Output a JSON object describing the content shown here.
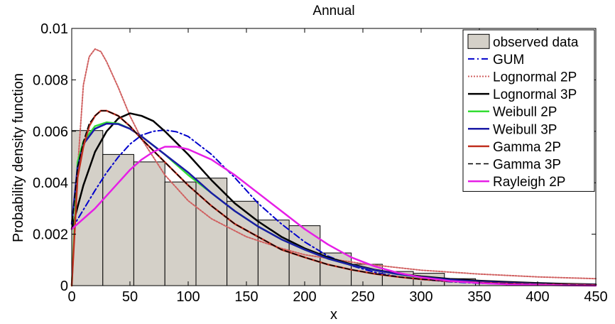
{
  "chart_data": {
    "type": "bar",
    "title": "Annual",
    "xlabel": "x",
    "ylabel": "Probability density function",
    "xlim": [
      0,
      450
    ],
    "ylim": [
      0,
      0.01
    ],
    "xticks": [
      "0",
      "50",
      "100",
      "150",
      "200",
      "250",
      "300",
      "350",
      "400",
      "450"
    ],
    "xtick_values": [
      0,
      50,
      100,
      150,
      200,
      250,
      300,
      350,
      400,
      450
    ],
    "yticks": [
      "0",
      "0.002",
      "0.004",
      "0.006",
      "0.008",
      "0.01"
    ],
    "ytick_values": [
      0,
      0.002,
      0.004,
      0.006,
      0.008,
      0.01
    ],
    "grid": false,
    "legend_position": "top-right",
    "histogram": {
      "name": "observed data",
      "color": "#d4d0c8",
      "bins": [
        {
          "x0": 0,
          "x1": 26.7,
          "value": 0.00603
        },
        {
          "x0": 26.7,
          "x1": 53.3,
          "value": 0.0051
        },
        {
          "x0": 53.3,
          "x1": 80,
          "value": 0.00481
        },
        {
          "x0": 80,
          "x1": 106.7,
          "value": 0.00403
        },
        {
          "x0": 106.7,
          "x1": 133.3,
          "value": 0.00418
        },
        {
          "x0": 133.3,
          "x1": 160,
          "value": 0.00328
        },
        {
          "x0": 160,
          "x1": 186.7,
          "value": 0.00255
        },
        {
          "x0": 186.7,
          "x1": 213.3,
          "value": 0.00233
        },
        {
          "x0": 213.3,
          "x1": 240,
          "value": 0.00127
        },
        {
          "x0": 240,
          "x1": 266.7,
          "value": 0.00083
        },
        {
          "x0": 266.7,
          "x1": 293.3,
          "value": 0.00055
        },
        {
          "x0": 293.3,
          "x1": 320,
          "value": 0.00048
        },
        {
          "x0": 320,
          "x1": 346.7,
          "value": 0.00027
        },
        {
          "x0": 346.7,
          "x1": 373.3,
          "value": 0.00015
        },
        {
          "x0": 373.3,
          "x1": 400,
          "value": 0.0001
        },
        {
          "x0": 400,
          "x1": 426.7,
          "value": 6e-05
        },
        {
          "x0": 426.7,
          "x1": 450,
          "value": 3e-05
        }
      ]
    },
    "series": [
      {
        "name": "GUM",
        "color": "#0000cc",
        "dash": "dashdot",
        "width": 2,
        "x": [
          0,
          10,
          20,
          30,
          40,
          50,
          60,
          70,
          80,
          90,
          100,
          120,
          140,
          160,
          180,
          200,
          220,
          240,
          260,
          280,
          300,
          325,
          350,
          375,
          400,
          425,
          450
        ],
        "y": [
          0.0022,
          0.00295,
          0.0037,
          0.0044,
          0.005,
          0.0055,
          0.00585,
          0.006,
          0.00605,
          0.00598,
          0.0058,
          0.0051,
          0.0042,
          0.0032,
          0.0024,
          0.0017,
          0.00115,
          0.00078,
          0.00052,
          0.00035,
          0.00024,
          0.00015,
          9e-05,
          6e-05,
          4e-05,
          2e-05,
          1e-05
        ]
      },
      {
        "name": "Lognormal 2P",
        "color": "#d06060",
        "dash": "dotted",
        "width": 2,
        "x": [
          0,
          5,
          10,
          15,
          20,
          25,
          30,
          40,
          50,
          60,
          80,
          100,
          120,
          150,
          180,
          200,
          250,
          300,
          350,
          400,
          450
        ],
        "y": [
          0,
          0.0045,
          0.0078,
          0.0089,
          0.0092,
          0.0091,
          0.0087,
          0.0077,
          0.0066,
          0.0057,
          0.0043,
          0.0033,
          0.0026,
          0.0019,
          0.00145,
          0.0012,
          0.00085,
          0.0006,
          0.00045,
          0.00034,
          0.00027
        ]
      },
      {
        "name": "Lognormal 3P",
        "color": "#000000",
        "dash": "solid",
        "width": 2.5,
        "x": [
          0,
          10,
          20,
          30,
          40,
          50,
          60,
          70,
          80,
          100,
          120,
          140,
          160,
          180,
          200,
          220,
          240,
          260,
          280,
          300,
          325,
          350,
          375,
          400,
          425,
          450
        ],
        "y": [
          0.0022,
          0.0039,
          0.0052,
          0.006,
          0.0065,
          0.0067,
          0.0066,
          0.0064,
          0.006,
          0.0051,
          0.0041,
          0.0032,
          0.0025,
          0.0019,
          0.00145,
          0.0011,
          0.00083,
          0.00062,
          0.00047,
          0.00036,
          0.00026,
          0.00019,
          0.00014,
          0.0001,
          7e-05,
          5e-05
        ]
      },
      {
        "name": "Weibull 2P",
        "color": "#33dd33",
        "dash": "solid",
        "width": 2.5,
        "x": [
          0,
          5,
          10,
          20,
          30,
          40,
          50,
          60,
          80,
          100,
          120,
          140,
          160,
          180,
          200,
          220,
          240,
          260,
          280,
          300,
          325,
          350,
          375,
          400,
          425,
          450
        ],
        "y": [
          0,
          0.0048,
          0.0056,
          0.0062,
          0.00635,
          0.0063,
          0.0061,
          0.0058,
          0.0051,
          0.0043,
          0.0036,
          0.0029,
          0.0023,
          0.0018,
          0.0014,
          0.00105,
          0.0008,
          0.0006,
          0.00044,
          0.00032,
          0.00022,
          0.00015,
          0.0001,
          7e-05,
          4e-05,
          3e-05
        ]
      },
      {
        "name": "Weibull 3P",
        "color": "#1a1aa6",
        "dash": "solid",
        "width": 2.5,
        "x": [
          0,
          5,
          10,
          20,
          30,
          40,
          50,
          60,
          80,
          100,
          120,
          140,
          160,
          180,
          200,
          220,
          240,
          260,
          280,
          300,
          325,
          350,
          375,
          400,
          425,
          450
        ],
        "y": [
          0.0024,
          0.0046,
          0.0055,
          0.0061,
          0.0063,
          0.00628,
          0.0061,
          0.0058,
          0.0051,
          0.0044,
          0.0036,
          0.0029,
          0.0023,
          0.0018,
          0.0014,
          0.00105,
          0.0008,
          0.0006,
          0.00045,
          0.00033,
          0.00023,
          0.00016,
          0.00011,
          7e-05,
          5e-05,
          3e-05
        ]
      },
      {
        "name": "Gamma 2P",
        "color": "#c03020",
        "dash": "solid",
        "width": 2.5,
        "x": [
          0,
          5,
          10,
          15,
          20,
          25,
          30,
          40,
          50,
          60,
          80,
          100,
          120,
          140,
          160,
          180,
          200,
          220,
          240,
          260,
          280,
          300,
          325,
          350,
          375,
          400,
          425,
          450
        ],
        "y": [
          0,
          0.0042,
          0.0054,
          0.0062,
          0.0066,
          0.0068,
          0.0068,
          0.0066,
          0.0062,
          0.0057,
          0.0048,
          0.0039,
          0.0031,
          0.0024,
          0.0019,
          0.0014,
          0.0011,
          0.00082,
          0.00062,
          0.00046,
          0.00034,
          0.00025,
          0.00017,
          0.00012,
          8e-05,
          5e-05,
          4e-05,
          2e-05
        ]
      },
      {
        "name": "Gamma 3P",
        "color": "#000000",
        "dash": "dashed",
        "width": 1.5,
        "x": [
          0,
          5,
          10,
          15,
          20,
          25,
          30,
          40,
          50,
          60,
          80,
          100,
          120,
          140,
          160,
          180,
          200,
          220,
          240,
          260,
          280,
          300,
          325,
          350,
          375,
          400,
          425,
          450
        ],
        "y": [
          0.0022,
          0.0046,
          0.0056,
          0.0063,
          0.0066,
          0.0068,
          0.0068,
          0.0066,
          0.0062,
          0.0057,
          0.0048,
          0.0039,
          0.0031,
          0.0024,
          0.0019,
          0.0014,
          0.0011,
          0.00082,
          0.00062,
          0.00046,
          0.00034,
          0.00025,
          0.00017,
          0.00012,
          8e-05,
          5e-05,
          4e-05,
          2e-05
        ]
      },
      {
        "name": "Rayleigh 2P",
        "color": "#e61ee6",
        "dash": "solid",
        "width": 2.5,
        "x": [
          0,
          10,
          20,
          30,
          40,
          50,
          60,
          70,
          80,
          90,
          100,
          120,
          140,
          160,
          180,
          200,
          220,
          240,
          260,
          280,
          300,
          325,
          350,
          375,
          400,
          425,
          450
        ],
        "y": [
          0.0022,
          0.0026,
          0.003,
          0.0035,
          0.004,
          0.0045,
          0.0049,
          0.0052,
          0.0054,
          0.0054,
          0.0053,
          0.0049,
          0.0043,
          0.0036,
          0.0029,
          0.0022,
          0.0016,
          0.0011,
          0.00075,
          0.0005,
          0.00032,
          0.00018,
          0.0001,
          5e-05,
          3e-05,
          1e-05,
          0
        ]
      }
    ]
  }
}
